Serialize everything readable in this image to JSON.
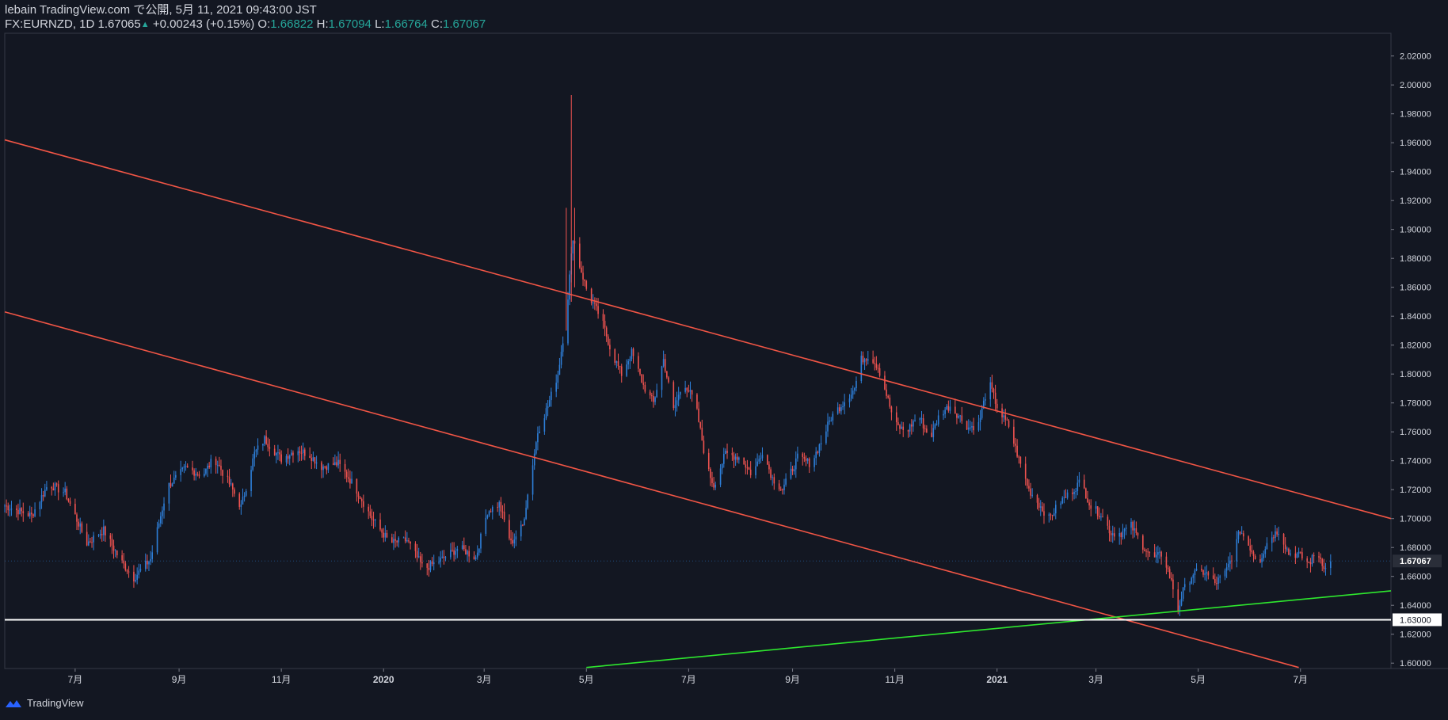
{
  "header": {
    "line1": "lebain TradingView.com で公開, 5月 11, 2021 09:43:00 JST",
    "symbol": "FX:EURNZD, 1D",
    "last": "1.67065",
    "change": "+0.00243 (+0.15%)",
    "o_label": "O:",
    "o_value": "1.66822",
    "h_label": "H:",
    "h_value": "1.67094",
    "l_label": "L:",
    "l_value": "1.66764",
    "c_label": "C:",
    "c_value": "1.67067"
  },
  "footer": {
    "brand": "TradingView"
  },
  "colors": {
    "background": "#131722",
    "up": "#2e7fd9",
    "down": "#ef5350",
    "channel": "#f05545",
    "support": "#2ee82e",
    "level": "#ffffff",
    "text": "#d1d4dc"
  },
  "chart_data": {
    "type": "candlestick",
    "symbol": "FX:EURNZD",
    "timeframe": "1D",
    "x_range": [
      "2019-05-20",
      "2021-08-24"
    ],
    "ylim": [
      1.59,
      2.03
    ],
    "y_ticks": [
      "1.60000",
      "1.62000",
      "1.64000",
      "1.66000",
      "1.68000",
      "1.70000",
      "1.72000",
      "1.74000",
      "1.76000",
      "1.78000",
      "1.80000",
      "1.82000",
      "1.84000",
      "1.86000",
      "1.88000",
      "1.90000",
      "1.92000",
      "1.94000",
      "1.96000",
      "1.98000",
      "2.00000",
      "2.02000"
    ],
    "x_ticks": [
      {
        "label": "7月",
        "date": "2019-07-01"
      },
      {
        "label": "9月",
        "date": "2019-09-01"
      },
      {
        "label": "11月",
        "date": "2019-11-01"
      },
      {
        "label": "2020",
        "date": "2020-01-01"
      },
      {
        "label": "3月",
        "date": "2020-03-01"
      },
      {
        "label": "5月",
        "date": "2020-05-01"
      },
      {
        "label": "7月",
        "date": "2020-07-01"
      },
      {
        "label": "9月",
        "date": "2020-09-01"
      },
      {
        "label": "11月",
        "date": "2020-11-01"
      },
      {
        "label": "2021",
        "date": "2021-01-01"
      },
      {
        "label": "3月",
        "date": "2021-03-01"
      },
      {
        "label": "5月",
        "date": "2021-05-01"
      },
      {
        "label": "7月",
        "date": "2021-07-01"
      }
    ],
    "price_anchors": [
      [
        "2019-05-20",
        1.709
      ],
      [
        "2019-06-05",
        1.702
      ],
      [
        "2019-06-15",
        1.724
      ],
      [
        "2019-06-25",
        1.718
      ],
      [
        "2019-07-08",
        1.683
      ],
      [
        "2019-07-18",
        1.692
      ],
      [
        "2019-07-28",
        1.671
      ],
      [
        "2019-08-05",
        1.659
      ],
      [
        "2019-08-15",
        1.672
      ],
      [
        "2019-08-25",
        1.722
      ],
      [
        "2019-09-05",
        1.735
      ],
      [
        "2019-09-15",
        1.73
      ],
      [
        "2019-09-22",
        1.742
      ],
      [
        "2019-10-02",
        1.722
      ],
      [
        "2019-10-08",
        1.708
      ],
      [
        "2019-10-16",
        1.745
      ],
      [
        "2019-10-22",
        1.755
      ],
      [
        "2019-11-01",
        1.741
      ],
      [
        "2019-11-10",
        1.748
      ],
      [
        "2019-11-18",
        1.744
      ],
      [
        "2019-11-25",
        1.736
      ],
      [
        "2019-12-05",
        1.738
      ],
      [
        "2019-12-15",
        1.722
      ],
      [
        "2019-12-25",
        1.7
      ],
      [
        "2020-01-05",
        1.683
      ],
      [
        "2020-01-15",
        1.685
      ],
      [
        "2020-01-25",
        1.665
      ],
      [
        "2020-02-05",
        1.672
      ],
      [
        "2020-02-15",
        1.68
      ],
      [
        "2020-02-25",
        1.673
      ],
      [
        "2020-03-03",
        1.705
      ],
      [
        "2020-03-10",
        1.71
      ],
      [
        "2020-03-17",
        1.683
      ],
      [
        "2020-03-24",
        1.695
      ],
      [
        "2020-04-02",
        1.76
      ],
      [
        "2020-04-08",
        1.778
      ],
      [
        "2020-04-14",
        1.8
      ],
      [
        "2020-04-19",
        1.84
      ],
      [
        "2020-04-23",
        1.895
      ],
      [
        "2020-04-27",
        1.875
      ],
      [
        "2020-05-02",
        1.855
      ],
      [
        "2020-05-10",
        1.838
      ],
      [
        "2020-05-16",
        1.815
      ],
      [
        "2020-05-22",
        1.8
      ],
      [
        "2020-05-28",
        1.815
      ],
      [
        "2020-06-04",
        1.792
      ],
      [
        "2020-06-10",
        1.78
      ],
      [
        "2020-06-16",
        1.81
      ],
      [
        "2020-06-22",
        1.775
      ],
      [
        "2020-06-28",
        1.795
      ],
      [
        "2020-07-05",
        1.78
      ],
      [
        "2020-07-12",
        1.735
      ],
      [
        "2020-07-16",
        1.723
      ],
      [
        "2020-07-23",
        1.745
      ],
      [
        "2020-08-01",
        1.742
      ],
      [
        "2020-08-08",
        1.73
      ],
      [
        "2020-08-14",
        1.747
      ],
      [
        "2020-08-20",
        1.728
      ],
      [
        "2020-08-26",
        1.72
      ],
      [
        "2020-09-04",
        1.742
      ],
      [
        "2020-09-12",
        1.738
      ],
      [
        "2020-09-18",
        1.753
      ],
      [
        "2020-09-24",
        1.77
      ],
      [
        "2020-10-01",
        1.78
      ],
      [
        "2020-10-08",
        1.79
      ],
      [
        "2020-10-12",
        1.81
      ],
      [
        "2020-10-17",
        1.813
      ],
      [
        "2020-10-22",
        1.805
      ],
      [
        "2020-10-27",
        1.786
      ],
      [
        "2020-11-01",
        1.765
      ],
      [
        "2020-11-08",
        1.76
      ],
      [
        "2020-11-15",
        1.772
      ],
      [
        "2020-11-22",
        1.755
      ],
      [
        "2020-11-28",
        1.773
      ],
      [
        "2020-12-04",
        1.778
      ],
      [
        "2020-12-10",
        1.77
      ],
      [
        "2020-12-15",
        1.763
      ],
      [
        "2020-12-21",
        1.765
      ],
      [
        "2020-12-27",
        1.795
      ],
      [
        "2021-01-02",
        1.774
      ],
      [
        "2021-01-08",
        1.764
      ],
      [
        "2021-01-14",
        1.741
      ],
      [
        "2021-01-20",
        1.72
      ],
      [
        "2021-01-26",
        1.71
      ],
      [
        "2021-02-01",
        1.7
      ],
      [
        "2021-02-08",
        1.712
      ],
      [
        "2021-02-14",
        1.718
      ],
      [
        "2021-02-20",
        1.726
      ],
      [
        "2021-02-26",
        1.708
      ],
      [
        "2021-03-04",
        1.703
      ],
      [
        "2021-03-10",
        1.69
      ],
      [
        "2021-03-16",
        1.69
      ],
      [
        "2021-03-22",
        1.695
      ],
      [
        "2021-03-28",
        1.683
      ],
      [
        "2021-04-04",
        1.672
      ],
      [
        "2021-04-10",
        1.676
      ],
      [
        "2021-04-16",
        1.652
      ],
      [
        "2021-04-19",
        1.637
      ],
      [
        "2021-04-22",
        1.65
      ],
      [
        "2021-04-28",
        1.662
      ],
      [
        "2021-05-05",
        1.663
      ],
      [
        "2021-05-11",
        1.655
      ],
      [
        "2021-05-17",
        1.662
      ],
      [
        "2021-05-22",
        1.676
      ],
      [
        "2021-05-26",
        1.692
      ],
      [
        "2021-06-01",
        1.68
      ],
      [
        "2021-06-06",
        1.669
      ],
      [
        "2021-06-12",
        1.686
      ],
      [
        "2021-06-18",
        1.692
      ],
      [
        "2021-06-24",
        1.676
      ],
      [
        "2021-06-30",
        1.675
      ],
      [
        "2021-07-06",
        1.669
      ],
      [
        "2021-07-11",
        1.677
      ],
      [
        "2021-07-16",
        1.665
      ],
      [
        "2021-07-20",
        1.671
      ]
    ],
    "trendlines": [
      {
        "name": "channel-upper",
        "color": "#f05545",
        "points": [
          [
            "2019-05-20",
            1.962
          ],
          [
            "2021-08-24",
            1.7
          ]
        ]
      },
      {
        "name": "channel-lower",
        "color": "#f05545",
        "points": [
          [
            "2019-05-20",
            1.843
          ],
          [
            "2021-06-30",
            1.597
          ]
        ]
      },
      {
        "name": "support",
        "color": "#2ee82e",
        "points": [
          [
            "2020-05-01",
            1.597
          ],
          [
            "2021-08-24",
            1.65
          ]
        ]
      }
    ],
    "horizontal_levels": [
      {
        "price": 1.63,
        "label": "1.63000",
        "color": "#ffffff"
      }
    ],
    "last_price": {
      "price": 1.67067,
      "label": "1.67067"
    }
  }
}
